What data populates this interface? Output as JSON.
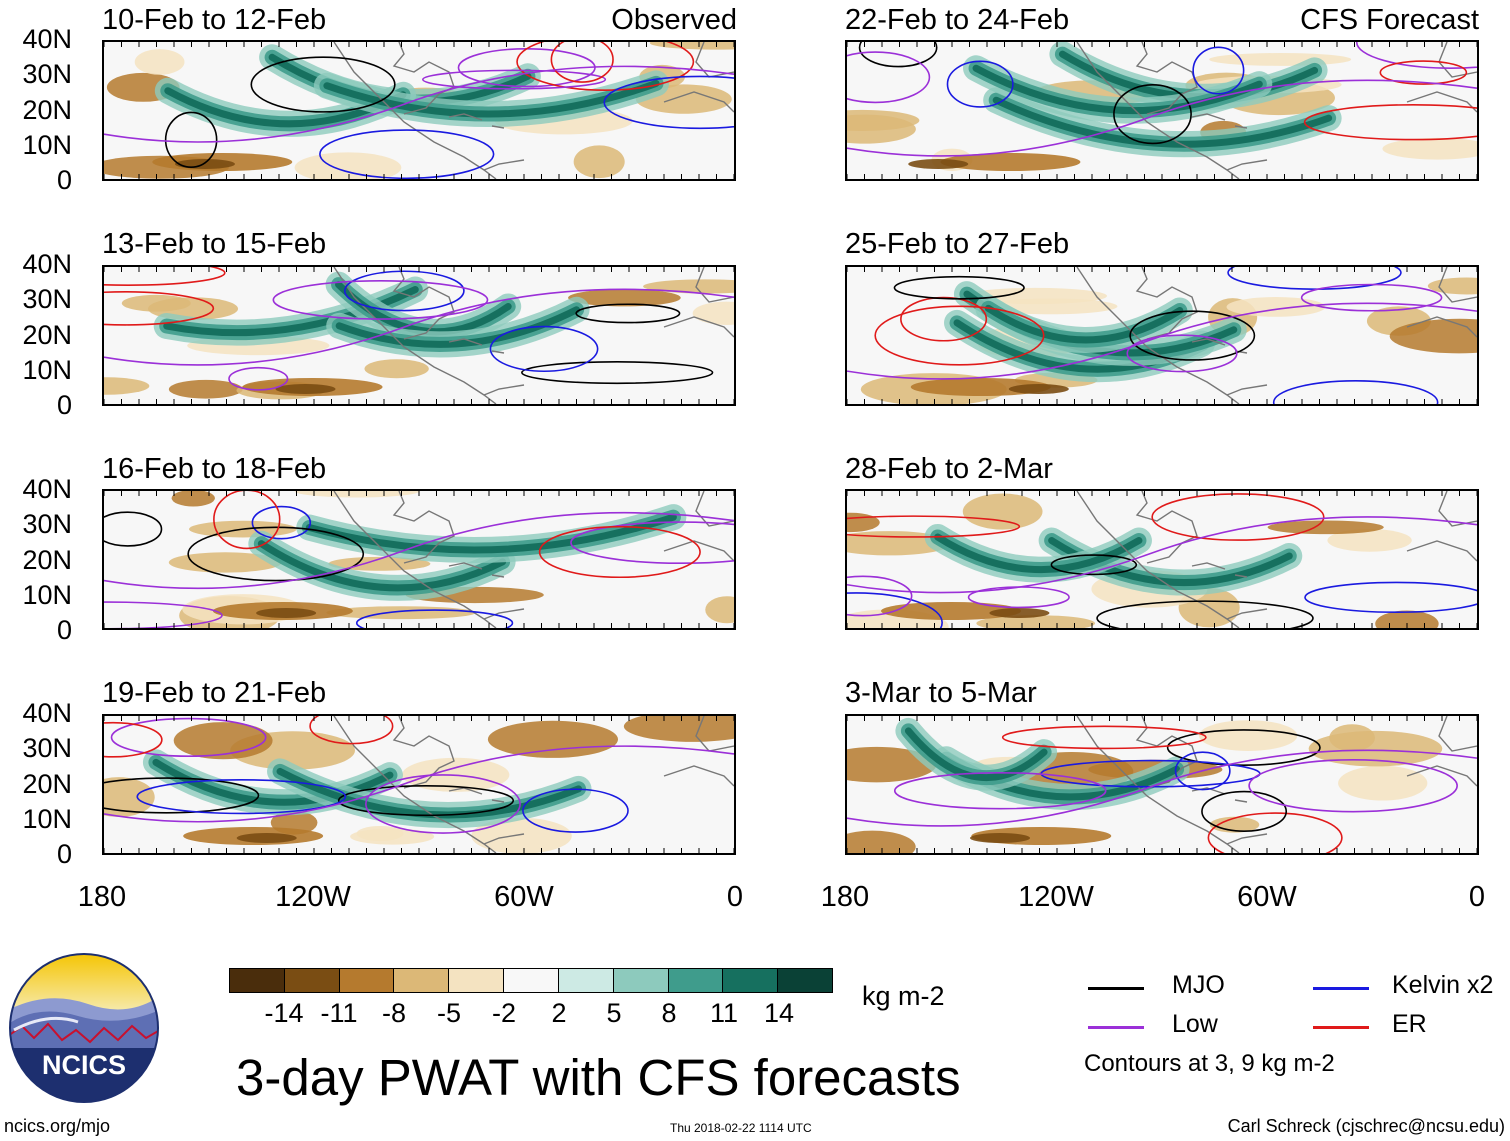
{
  "panels": [
    {
      "title": "10-Feb to 12-Feb",
      "tag": "Observed"
    },
    {
      "title": "22-Feb to 24-Feb",
      "tag": "CFS Forecast"
    },
    {
      "title": "13-Feb to 15-Feb",
      "tag": ""
    },
    {
      "title": "25-Feb to 27-Feb",
      "tag": ""
    },
    {
      "title": "16-Feb to 18-Feb",
      "tag": ""
    },
    {
      "title": "28-Feb to 2-Mar",
      "tag": ""
    },
    {
      "title": "19-Feb to 21-Feb",
      "tag": ""
    },
    {
      "title": "3-Mar to 5-Mar",
      "tag": ""
    }
  ],
  "lat_labels": [
    "40N",
    "30N",
    "20N",
    "10N",
    "0"
  ],
  "lon_labels": [
    "180",
    "120W",
    "60W",
    "0"
  ],
  "colorbar": {
    "colors": [
      "#4a2d0c",
      "#7a4d13",
      "#b57a2e",
      "#dcb877",
      "#f4e3c1",
      "#f8f8f8",
      "#cdeae4",
      "#8dcabd",
      "#3f9c8c",
      "#16705f",
      "#0a4136"
    ],
    "ticks": [
      "-14",
      "-11",
      "-8",
      "-5",
      "-2",
      "2",
      "5",
      "8",
      "11",
      "14"
    ],
    "units": "kg m-2"
  },
  "legend": {
    "items": [
      {
        "label": "MJO",
        "color": "#000000"
      },
      {
        "label": "Kelvin x2",
        "color": "#1a1ae0"
      },
      {
        "label": "Low",
        "color": "#9b30d8"
      },
      {
        "label": "ER",
        "color": "#e01a1a"
      }
    ],
    "note": "Contours at 3, 9 kg m-2"
  },
  "title": "3-day PWAT with CFS forecasts",
  "footer": {
    "site": "ncics.org/mjo",
    "timestamp": "Thu 2018-02-22 1114 UTC",
    "author": "Carl Schreck (cjschrec@ncsu.edu)"
  },
  "logo": {
    "text": "NCICS"
  }
}
